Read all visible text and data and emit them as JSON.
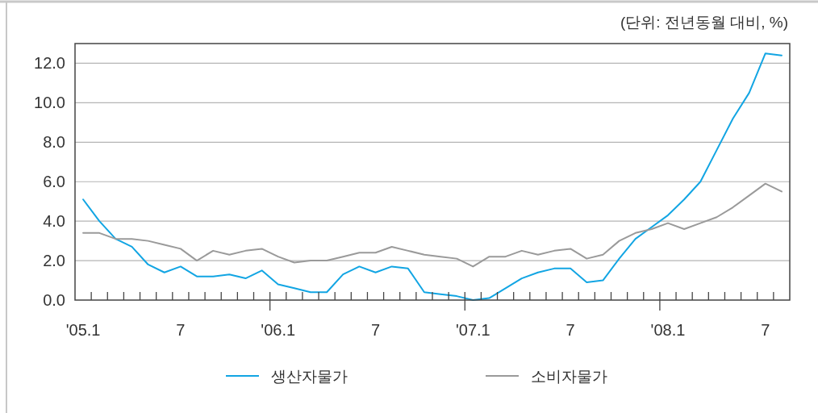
{
  "chart_data": {
    "type": "line",
    "annotations": [
      "(단위: 전년동월 대비, %)"
    ],
    "categories": [
      "'05.1",
      null,
      null,
      null,
      null,
      null,
      "7",
      null,
      null,
      null,
      null,
      null,
      "'06.1",
      null,
      null,
      null,
      null,
      null,
      "7",
      null,
      null,
      null,
      null,
      null,
      "'07.1",
      null,
      null,
      null,
      null,
      null,
      "7",
      null,
      null,
      null,
      null,
      null,
      "'08.1",
      null,
      null,
      null,
      null,
      null,
      "7",
      null
    ],
    "series": [
      {
        "name": "생산자물가",
        "color": "#12a5e3",
        "values": [
          5.1,
          4.0,
          3.1,
          2.7,
          1.8,
          1.4,
          1.7,
          1.2,
          1.2,
          1.3,
          1.1,
          1.5,
          0.8,
          0.6,
          0.4,
          0.4,
          1.3,
          1.7,
          1.4,
          1.7,
          1.6,
          0.4,
          0.3,
          0.2,
          0.0,
          0.1,
          0.6,
          1.1,
          1.4,
          1.6,
          1.6,
          0.9,
          1.0,
          2.1,
          3.1,
          3.7,
          4.3,
          5.1,
          6.0,
          7.6,
          9.2,
          10.5,
          12.5,
          12.4
        ]
      },
      {
        "name": "소비자물가",
        "color": "#9a9a9a",
        "values": [
          3.4,
          3.4,
          3.1,
          3.1,
          3.0,
          2.8,
          2.6,
          2.0,
          2.5,
          2.3,
          2.5,
          2.6,
          2.2,
          1.9,
          2.0,
          2.0,
          2.2,
          2.4,
          2.4,
          2.7,
          2.5,
          2.3,
          2.2,
          2.1,
          1.7,
          2.2,
          2.2,
          2.5,
          2.3,
          2.5,
          2.6,
          2.1,
          2.3,
          3.0,
          3.4,
          3.6,
          3.9,
          3.6,
          3.9,
          4.2,
          4.7,
          5.3,
          5.9,
          5.5
        ]
      }
    ],
    "ylim": [
      0,
      13
    ],
    "yticks": [
      {
        "value": 0,
        "label": "0.0"
      },
      {
        "value": 2,
        "label": "2.0"
      },
      {
        "value": 4,
        "label": "4.0"
      },
      {
        "value": 6,
        "label": "6.0"
      },
      {
        "value": 8,
        "label": "8.0"
      },
      {
        "value": 10,
        "label": "10.0"
      },
      {
        "value": 12,
        "label": "12.0"
      }
    ],
    "grid": "y",
    "legend": "bottom"
  }
}
